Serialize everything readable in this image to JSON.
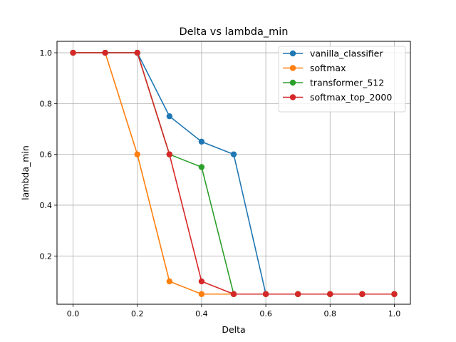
{
  "chart_data": {
    "type": "line",
    "title": "Delta vs lambda_min",
    "xlabel": "Delta",
    "ylabel": "lambda_min",
    "x": [
      0.0,
      0.1,
      0.2,
      0.3,
      0.4,
      0.5,
      0.6,
      0.7,
      0.8,
      0.9,
      1.0
    ],
    "xlim": [
      -0.05,
      1.05
    ],
    "ylim": [
      0.01,
      1.045
    ],
    "xticks": [
      "0.0",
      "0.2",
      "0.4",
      "0.6",
      "0.8",
      "1.0"
    ],
    "yticks": [
      "0.2",
      "0.4",
      "0.6",
      "0.8",
      "1.0"
    ],
    "grid": true,
    "legend_position": "top-right",
    "series": [
      {
        "name": "vanilla_classifier",
        "color": "#1f77b4",
        "values": [
          1.0,
          1.0,
          1.0,
          0.75,
          0.65,
          0.6,
          0.05,
          0.05,
          0.05,
          0.05,
          0.05
        ]
      },
      {
        "name": "softmax",
        "color": "#ff7f0e",
        "values": [
          1.0,
          1.0,
          0.6,
          0.1,
          0.05,
          0.05,
          0.05,
          0.05,
          0.05,
          0.05,
          0.05
        ]
      },
      {
        "name": "transformer_512",
        "color": "#2ca02c",
        "values": [
          1.0,
          1.0,
          1.0,
          0.6,
          0.55,
          0.05,
          0.05,
          0.05,
          0.05,
          0.05,
          0.05
        ]
      },
      {
        "name": "softmax_top_2000",
        "color": "#d62728",
        "values": [
          1.0,
          1.0,
          1.0,
          0.6,
          0.1,
          0.05,
          0.05,
          0.05,
          0.05,
          0.05,
          0.05
        ]
      }
    ]
  }
}
